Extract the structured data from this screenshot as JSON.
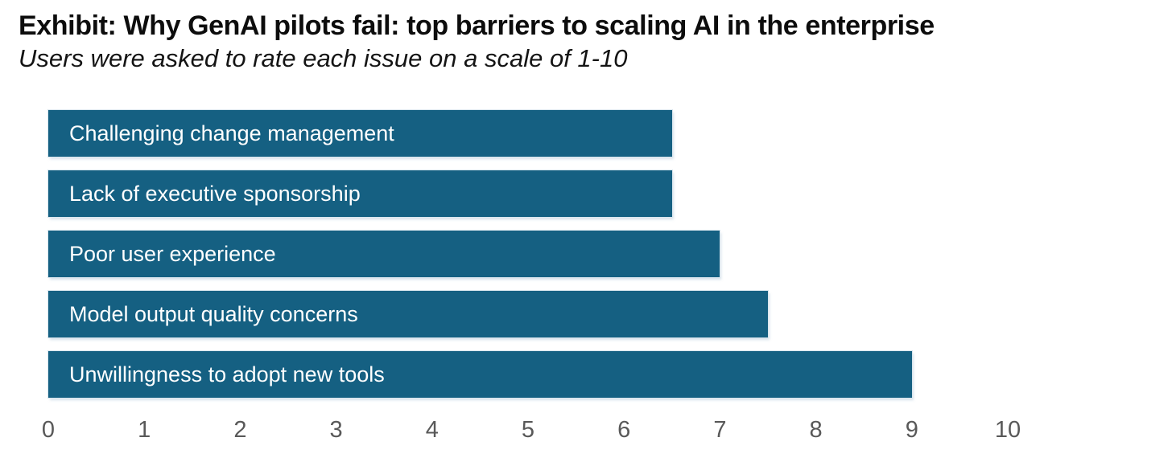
{
  "header": {
    "title": "Exhibit: Why GenAI pilots fail: top barriers to scaling AI in the enterprise",
    "subtitle": "Users were asked to rate each issue on a scale of 1-10"
  },
  "chart_data": {
    "type": "bar",
    "orientation": "horizontal",
    "title": "Exhibit: Why GenAI pilots fail: top barriers to scaling AI in the enterprise",
    "subtitle": "Users were asked to rate each issue on a scale of 1-10",
    "categories": [
      "Challenging change management",
      "Lack of executive sponsorship",
      "Poor user experience",
      "Model output quality concerns",
      "Unwillingness to adopt new tools"
    ],
    "values": [
      6.5,
      6.5,
      7,
      7.5,
      9
    ],
    "xlabel": "",
    "ylabel": "",
    "xlim": [
      0,
      10
    ],
    "x_ticks": [
      0,
      1,
      2,
      3,
      4,
      5,
      6,
      7,
      8,
      9,
      10
    ],
    "grid": false,
    "legend": false,
    "colors": {
      "bar_fill": "#156082",
      "bar_label_text": "#ffffff",
      "axis_tick_text": "#595959",
      "title_text": "#0d0d0d",
      "background": "#ffffff"
    }
  }
}
